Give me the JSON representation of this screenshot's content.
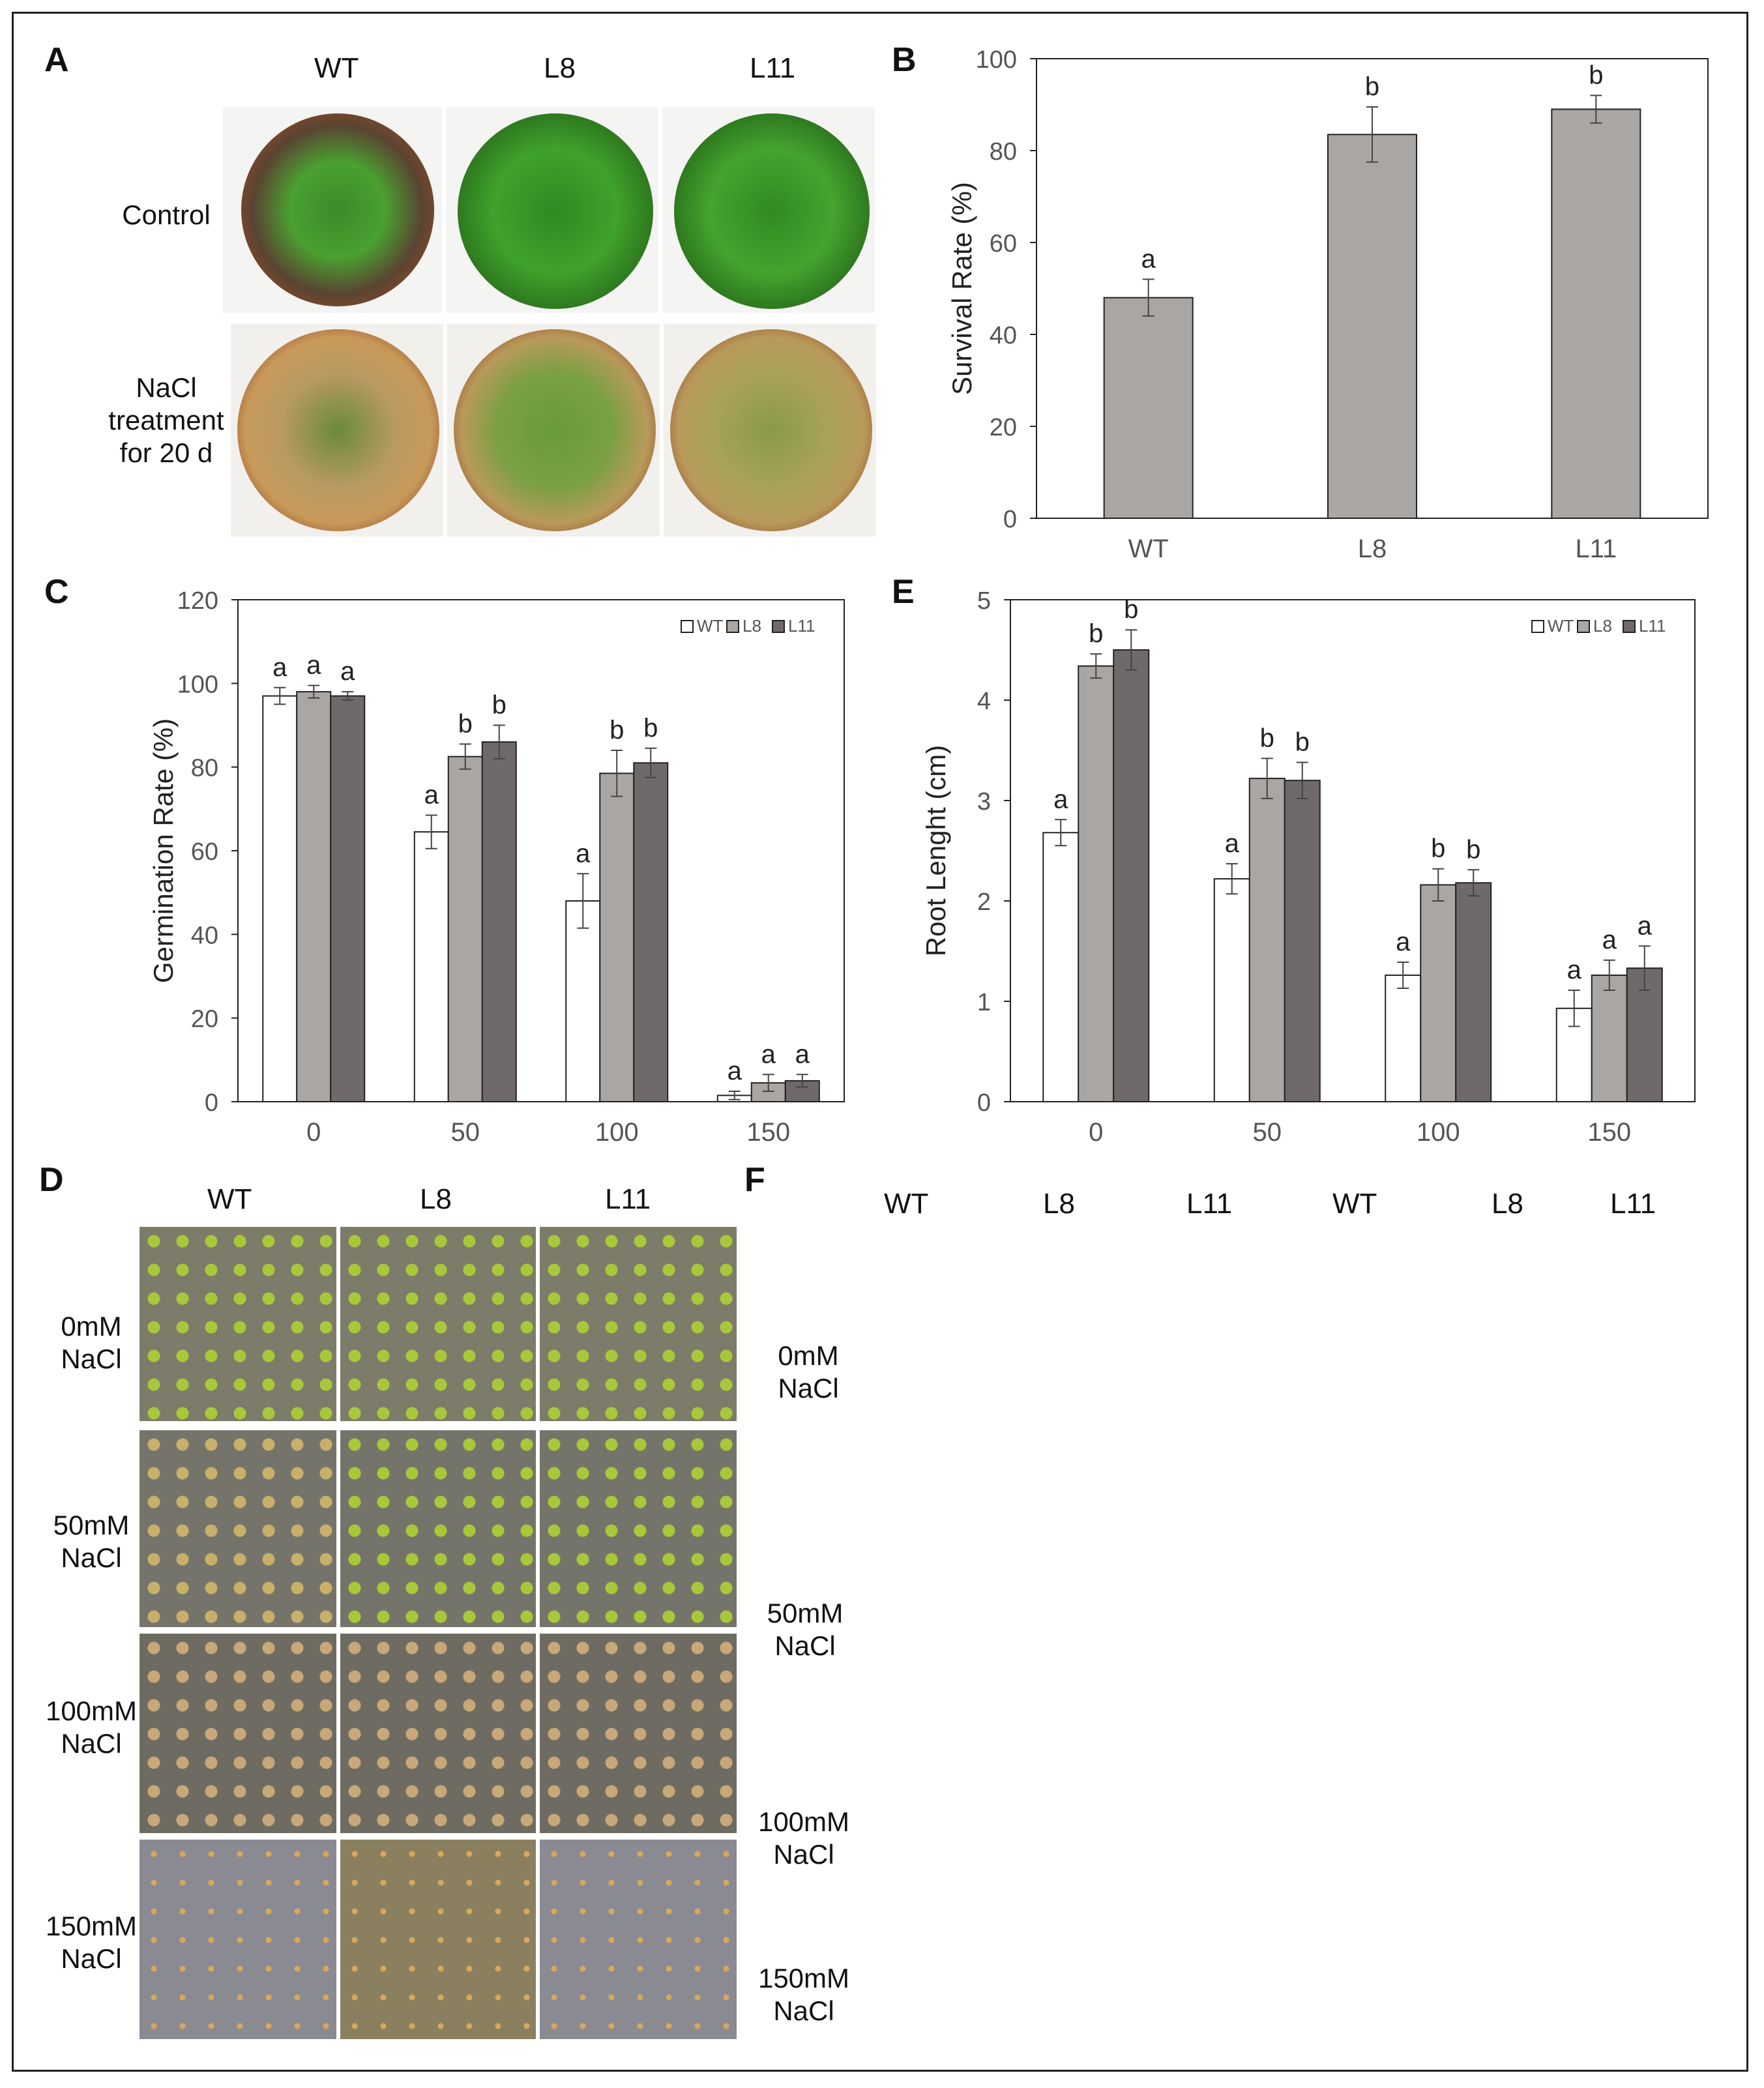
{
  "panels": {
    "A": "A",
    "B": "B",
    "C": "C",
    "D": "D",
    "E": "E",
    "F": "F"
  },
  "panelA": {
    "cols": [
      "WT",
      "L8",
      "L11"
    ],
    "rows": [
      "Control",
      "NaCl\ntreatment\nfor 20 d"
    ]
  },
  "panelD": {
    "cols": [
      "WT",
      "L8",
      "L11"
    ],
    "rows": [
      "0mM\nNaCl",
      "50mM\nNaCl",
      "100mM\nNaCl",
      "150mM\nNaCl"
    ]
  },
  "panelF": {
    "cols": [
      "WT",
      "L8",
      "L11",
      "WT",
      "L8",
      "L11"
    ],
    "rows": [
      "0mM\nNaCl",
      "50mM\nNaCl",
      "100mM\nNaCl",
      "150mM\nNaCl"
    ]
  },
  "colors": {
    "wt": "#ffffff",
    "l8": "#aaa6a4",
    "l11": "#6f6a69",
    "survival": "#aaa6a4"
  },
  "chart_data": [
    {
      "id": "B",
      "type": "bar",
      "categories": [
        "WT",
        "L8",
        "L11"
      ],
      "values": [
        48,
        83.5,
        89
      ],
      "errors": [
        4,
        6,
        3
      ],
      "letters": [
        "a",
        "b",
        "b"
      ],
      "ylabel": "Survival Rate (%)",
      "ylim": [
        0,
        100
      ],
      "yticks": [
        0,
        20,
        40,
        60,
        80,
        100
      ]
    },
    {
      "id": "C",
      "type": "bar",
      "categories": [
        "0",
        "50",
        "100",
        "150"
      ],
      "series": [
        {
          "name": "WT",
          "values": [
            97,
            64.5,
            48,
            1.5
          ],
          "errors": [
            2,
            4,
            6.5,
            1
          ],
          "letters": [
            "a",
            "a",
            "a",
            "a"
          ]
        },
        {
          "name": "L8",
          "values": [
            98,
            82.5,
            78.5,
            4.5
          ],
          "errors": [
            1.5,
            3,
            5.5,
            2
          ],
          "letters": [
            "a",
            "b",
            "b",
            "a"
          ]
        },
        {
          "name": "L11",
          "values": [
            97,
            86,
            81,
            5
          ],
          "errors": [
            1,
            4,
            3.5,
            1.5
          ],
          "letters": [
            "a",
            "b",
            "b",
            "a"
          ]
        }
      ],
      "ylabel": "Germination Rate (%)",
      "ylim": [
        0,
        120
      ],
      "yticks": [
        0,
        20,
        40,
        60,
        80,
        100,
        120
      ],
      "legend": "top-right"
    },
    {
      "id": "E",
      "type": "bar",
      "categories": [
        "0",
        "50",
        "100",
        "150"
      ],
      "series": [
        {
          "name": "WT",
          "values": [
            2.68,
            2.22,
            1.26,
            0.93
          ],
          "errors": [
            0.13,
            0.15,
            0.13,
            0.18
          ],
          "letters": [
            "a",
            "a",
            "a",
            "a"
          ]
        },
        {
          "name": "L8",
          "values": [
            4.34,
            3.22,
            2.16,
            1.26
          ],
          "errors": [
            0.12,
            0.2,
            0.16,
            0.15
          ],
          "letters": [
            "b",
            "b",
            "b",
            "a"
          ]
        },
        {
          "name": "L11",
          "values": [
            4.5,
            3.2,
            2.18,
            1.33
          ],
          "errors": [
            0.2,
            0.18,
            0.13,
            0.22
          ],
          "letters": [
            "b",
            "b",
            "b",
            "a"
          ]
        }
      ],
      "ylabel": "Root Lenght (cm)",
      "ylim": [
        0,
        5
      ],
      "yticks": [
        0,
        1,
        2,
        3,
        4,
        5
      ],
      "legend": "top-right"
    }
  ]
}
